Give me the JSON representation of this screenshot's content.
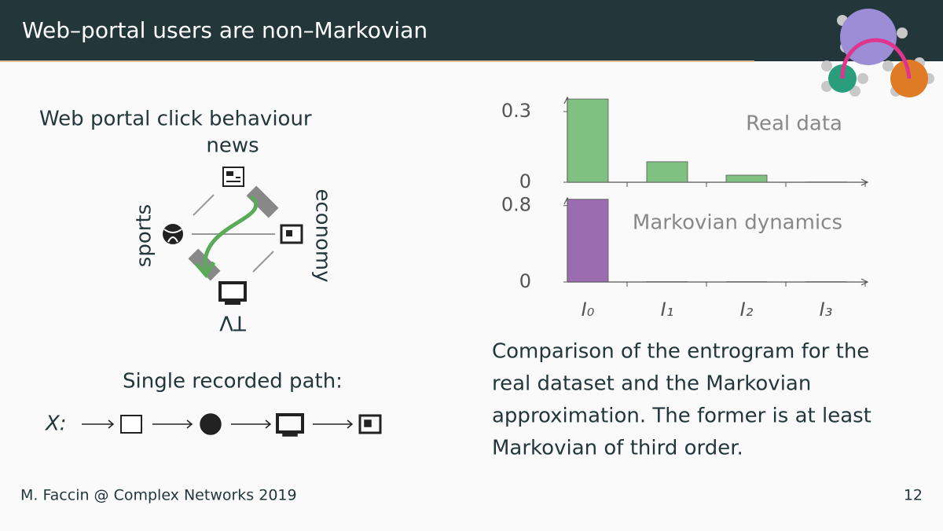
{
  "header": {
    "title": "Web–portal users are non–Markovian"
  },
  "diagram": {
    "title": "Web portal click behaviour",
    "nodes": [
      "news",
      "economy",
      "TV",
      "sports"
    ]
  },
  "path": {
    "title": "Single recorded path:",
    "variable": "X:"
  },
  "chart_data": [
    {
      "type": "bar",
      "annotation": "Real data",
      "values": [
        0.353,
        0.087,
        0.03,
        0.001
      ],
      "color": "#80c080",
      "ylim": [
        0,
        0.36
      ],
      "yticks": [
        0,
        0.3
      ]
    },
    {
      "type": "bar",
      "annotation": "Markovian dynamics",
      "categories": [
        "I₀",
        "I₁",
        "I₂",
        "I₃"
      ],
      "values": [
        0.866,
        0.003,
        0.003,
        0.003
      ],
      "color": "#9b6db0",
      "ylim": [
        0,
        0.88
      ],
      "yticks": [
        0,
        0.8
      ]
    }
  ],
  "caption": [
    "Comparison of the entrogram for the",
    "real dataset and the Markovian",
    "approximation. The former is at least",
    "Markovian of third order."
  ],
  "footer": {
    "author": "M. Faccin @ Complex Networks 2019",
    "page": "12"
  }
}
